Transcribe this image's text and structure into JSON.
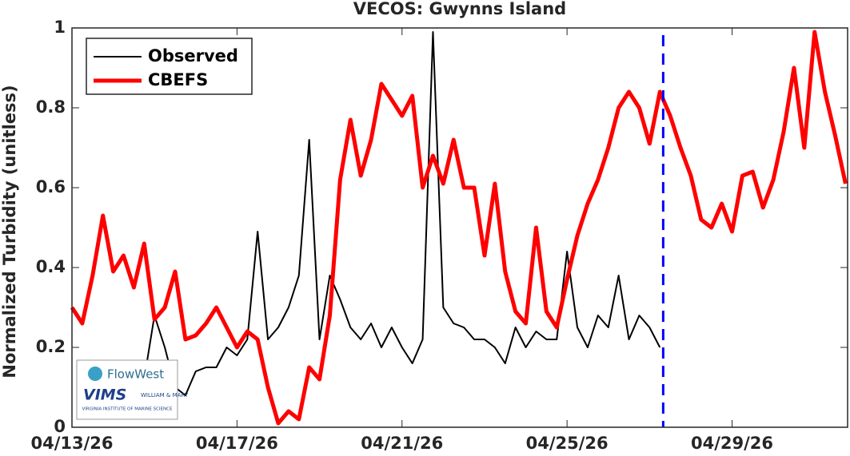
{
  "chart_data": {
    "type": "line",
    "title": "VECOS: Gwynns Island",
    "ylabel": "Normalized Turbidity (unitless)",
    "x": [
      0,
      0.25,
      0.5,
      0.75,
      1,
      1.25,
      1.5,
      1.75,
      2,
      2.25,
      2.5,
      2.75,
      3,
      3.25,
      3.5,
      3.75,
      4,
      4.25,
      4.5,
      4.75,
      5,
      5.25,
      5.5,
      5.75,
      6,
      6.25,
      6.5,
      6.75,
      7,
      7.25,
      7.5,
      7.75,
      8,
      8.25,
      8.5,
      8.75,
      9,
      9.25,
      9.5,
      9.75,
      10,
      10.25,
      10.5,
      10.75,
      11,
      11.25,
      11.5,
      11.75,
      12,
      12.25,
      12.5,
      12.75,
      13,
      13.25,
      13.5,
      13.75,
      14,
      14.25,
      14.5,
      14.75,
      15,
      15.25,
      15.5,
      15.75,
      16,
      16.25,
      16.5,
      16.75,
      17,
      17.25,
      17.5,
      17.75,
      18,
      18.25,
      18.5,
      18.75
    ],
    "series": [
      {
        "name": "Observed",
        "color": "#000000",
        "width": 2,
        "values": [
          null,
          null,
          null,
          null,
          null,
          null,
          null,
          0.12,
          0.28,
          0.2,
          0.1,
          0.08,
          0.14,
          0.15,
          0.15,
          0.2,
          0.18,
          0.22,
          0.49,
          0.22,
          0.25,
          0.3,
          0.38,
          0.72,
          0.22,
          0.38,
          0.32,
          0.25,
          0.22,
          0.26,
          0.2,
          0.25,
          0.2,
          0.16,
          0.22,
          0.99,
          0.3,
          0.26,
          0.25,
          0.22,
          0.22,
          0.2,
          0.16,
          0.25,
          0.2,
          0.24,
          0.22,
          0.22,
          0.44,
          0.25,
          0.2,
          0.28,
          0.25,
          0.38,
          0.22,
          0.28,
          0.25,
          0.2,
          null,
          null,
          null,
          null,
          null,
          null,
          null,
          null,
          null,
          null,
          null,
          null,
          null,
          null,
          null,
          null,
          null,
          null
        ]
      },
      {
        "name": "CBEFS",
        "color": "#ff0000",
        "width": 5,
        "values": [
          0.3,
          0.26,
          0.38,
          0.53,
          0.39,
          0.43,
          0.35,
          0.46,
          0.27,
          0.3,
          0.39,
          0.22,
          0.23,
          0.26,
          0.3,
          0.25,
          0.2,
          0.24,
          0.22,
          0.1,
          0.01,
          0.04,
          0.02,
          0.15,
          0.12,
          0.28,
          0.62,
          0.77,
          0.63,
          0.72,
          0.86,
          0.82,
          0.78,
          0.83,
          0.6,
          0.68,
          0.61,
          0.72,
          0.6,
          0.6,
          0.43,
          0.61,
          0.39,
          0.29,
          0.26,
          0.5,
          0.29,
          0.25,
          0.37,
          0.48,
          0.56,
          0.62,
          0.7,
          0.8,
          0.84,
          0.8,
          0.71,
          0.84,
          0.78,
          0.7,
          0.63,
          0.52,
          0.5,
          0.56,
          0.49,
          0.63,
          0.64,
          0.55,
          0.62,
          0.74,
          0.9,
          0.7,
          0.99,
          0.84,
          0.73,
          0.61
        ]
      }
    ],
    "vline": {
      "x": 14.33,
      "color": "#0000ff"
    },
    "xlim": [
      0,
      18.8
    ],
    "xticks": [
      {
        "value": 0,
        "label": "04/13/26"
      },
      {
        "value": 4,
        "label": "04/17/26"
      },
      {
        "value": 8,
        "label": "04/21/26"
      },
      {
        "value": 12,
        "label": "04/25/26"
      },
      {
        "value": 16,
        "label": "04/29/26"
      }
    ],
    "ylim": [
      0,
      1
    ],
    "yticks": [
      0,
      0.2,
      0.4,
      0.6,
      0.8,
      1
    ],
    "legend": "upper left"
  },
  "logo": {
    "flowwest": "FlowWest",
    "vims": "VIMS",
    "wm": "WILLIAM & MARY",
    "caption": "VIRGINIA INSTITUTE OF MARINE SCIENCE"
  }
}
